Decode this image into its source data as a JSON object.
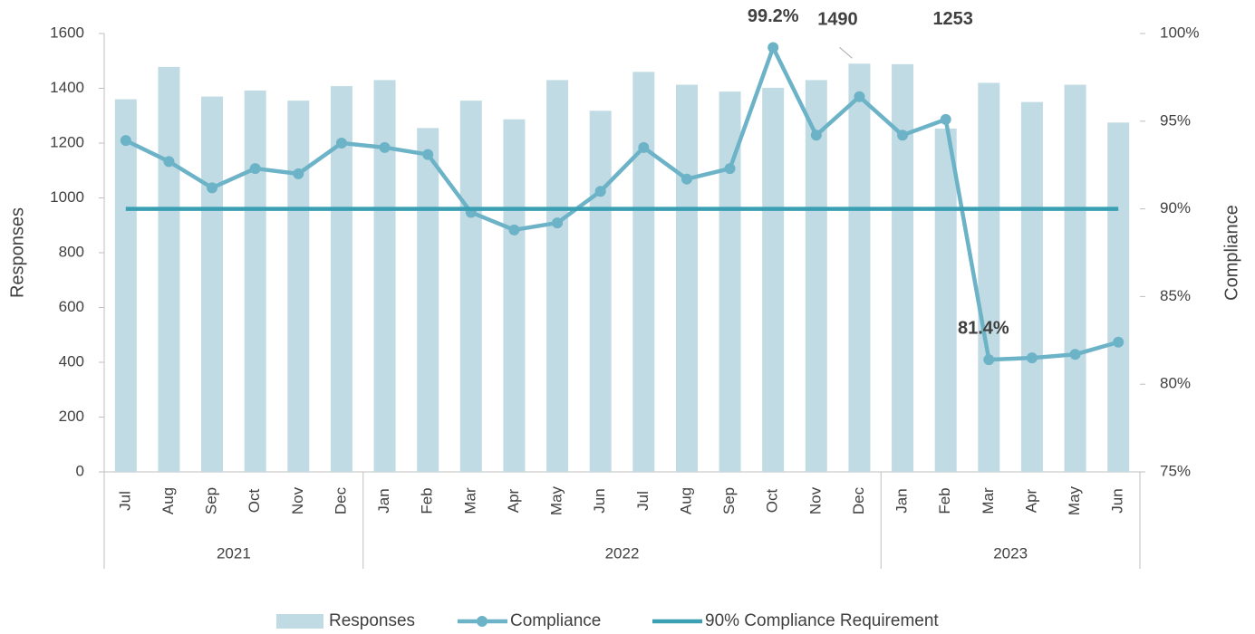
{
  "chart_data": {
    "type": "bar-line",
    "categories": [
      "Jul",
      "Aug",
      "Sep",
      "Oct",
      "Nov",
      "Dec",
      "Jan",
      "Feb",
      "Mar",
      "Apr",
      "May",
      "Jun",
      "Jul",
      "Aug",
      "Sep",
      "Oct",
      "Nov",
      "Dec",
      "Jan",
      "Feb",
      "Mar",
      "Apr",
      "May",
      "Jun"
    ],
    "groups": [
      {
        "label": "2021",
        "count": 6
      },
      {
        "label": "2022",
        "count": 12
      },
      {
        "label": "2023",
        "count": 6
      }
    ],
    "y_label": "Responses",
    "y2_label": "Compliance",
    "ylim": [
      0,
      1600
    ],
    "yticks": [
      0,
      200,
      400,
      600,
      800,
      1000,
      1200,
      1400,
      1600
    ],
    "y2lim": [
      75,
      100
    ],
    "y2ticks": [
      {
        "value": 75,
        "label": "75%"
      },
      {
        "value": 80,
        "label": "80%"
      },
      {
        "value": 85,
        "label": "85%"
      },
      {
        "value": 90,
        "label": "90%"
      },
      {
        "value": 95,
        "label": "95%"
      },
      {
        "value": 100,
        "label": "100%"
      }
    ],
    "series": [
      {
        "name": "Responses",
        "type": "bar",
        "color": "#c0dbe3",
        "values": [
          1360,
          1478,
          1370,
          1392,
          1355,
          1408,
          1430,
          1255,
          1355,
          1287,
          1430,
          1318,
          1460,
          1413,
          1388,
          1402,
          1430,
          1490,
          1488,
          1253,
          1420,
          1350,
          1413,
          1275
        ],
        "value_labels": [
          null,
          null,
          null,
          null,
          null,
          null,
          null,
          null,
          null,
          null,
          null,
          null,
          null,
          null,
          null,
          null,
          null,
          "1490",
          null,
          "1253",
          null,
          null,
          null,
          null
        ]
      },
      {
        "name": "Compliance",
        "type": "line",
        "axis": "y2",
        "color": "#6db3c8",
        "markers": true,
        "values": [
          93.9,
          92.7,
          91.2,
          92.3,
          92.0,
          93.75,
          93.5,
          93.1,
          89.8,
          88.8,
          89.2,
          91.0,
          93.5,
          91.7,
          92.3,
          99.2,
          94.2,
          96.4,
          94.2,
          95.1,
          81.4,
          81.5,
          81.7,
          82.4
        ],
        "value_labels": [
          null,
          null,
          null,
          null,
          null,
          null,
          null,
          null,
          null,
          null,
          null,
          null,
          null,
          null,
          null,
          "99.2%",
          null,
          null,
          null,
          null,
          "81.4%",
          null,
          null,
          null
        ]
      },
      {
        "name": "90% Compliance Requirement",
        "type": "line",
        "axis": "y2",
        "color": "#3a9fb3",
        "markers": false,
        "values": [
          90,
          90,
          90,
          90,
          90,
          90,
          90,
          90,
          90,
          90,
          90,
          90,
          90,
          90,
          90,
          90,
          90,
          90,
          90,
          90,
          90,
          90,
          90,
          90
        ]
      }
    ]
  }
}
